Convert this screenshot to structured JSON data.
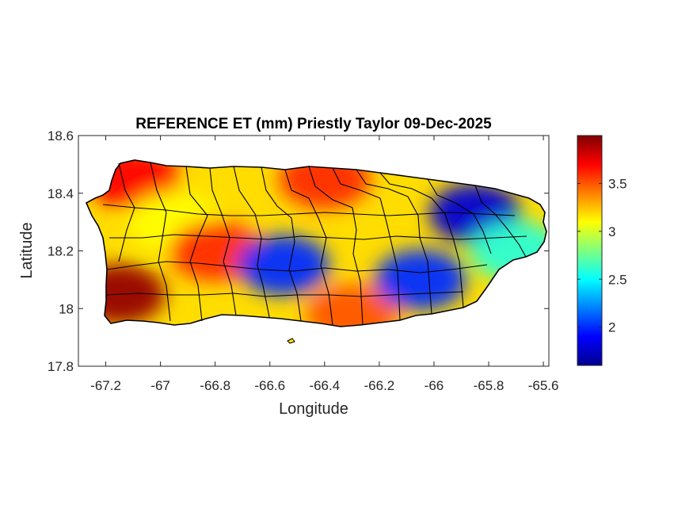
{
  "title": "REFERENCE ET (mm) Priestly Taylor 09-Dec-2025",
  "x_axis": {
    "label": "Longitude",
    "range": [
      -67.3,
      -65.58
    ],
    "ticks": [
      -67.2,
      -67,
      -66.8,
      -66.6,
      -66.4,
      -66.2,
      -66,
      -65.8,
      -65.6
    ],
    "tick_labels": [
      "-67.2",
      "-67",
      "-66.8",
      "-66.6",
      "-66.4",
      "-66.2",
      "-66",
      "-65.8",
      "-65.6"
    ]
  },
  "y_axis": {
    "label": "Latitude",
    "range": [
      17.8,
      18.6
    ],
    "ticks": [
      17.8,
      18.0,
      18.2,
      18.4,
      18.6
    ],
    "tick_labels": [
      "17.8",
      "18",
      "18.2",
      "18.4",
      "18.6"
    ]
  },
  "colorbar": {
    "colormap": "jet",
    "range": [
      1.6,
      4.0
    ],
    "ticks": [
      2,
      2.5,
      3,
      3.5
    ],
    "tick_labels": [
      "2",
      "2.5",
      "3",
      "3.5"
    ]
  },
  "map": {
    "region": "Puerto Rico",
    "variable": "Reference ET (mm)",
    "boundaries": "municipalities",
    "value_pattern": [
      {
        "lon": -67.15,
        "lat": 18.05,
        "value": 3.95
      },
      {
        "lon": -67.1,
        "lat": 18.45,
        "value": 3.7
      },
      {
        "lon": -66.95,
        "lat": 18.3,
        "value": 3.1
      },
      {
        "lon": -66.8,
        "lat": 18.2,
        "value": 3.6
      },
      {
        "lon": -66.55,
        "lat": 18.15,
        "value": 2.0
      },
      {
        "lon": -66.4,
        "lat": 18.45,
        "value": 3.6
      },
      {
        "lon": -66.3,
        "lat": 17.98,
        "value": 3.5
      },
      {
        "lon": -66.05,
        "lat": 18.1,
        "value": 2.0
      },
      {
        "lon": -65.85,
        "lat": 18.33,
        "value": 1.8
      },
      {
        "lon": -65.7,
        "lat": 18.2,
        "value": 2.6
      }
    ]
  }
}
